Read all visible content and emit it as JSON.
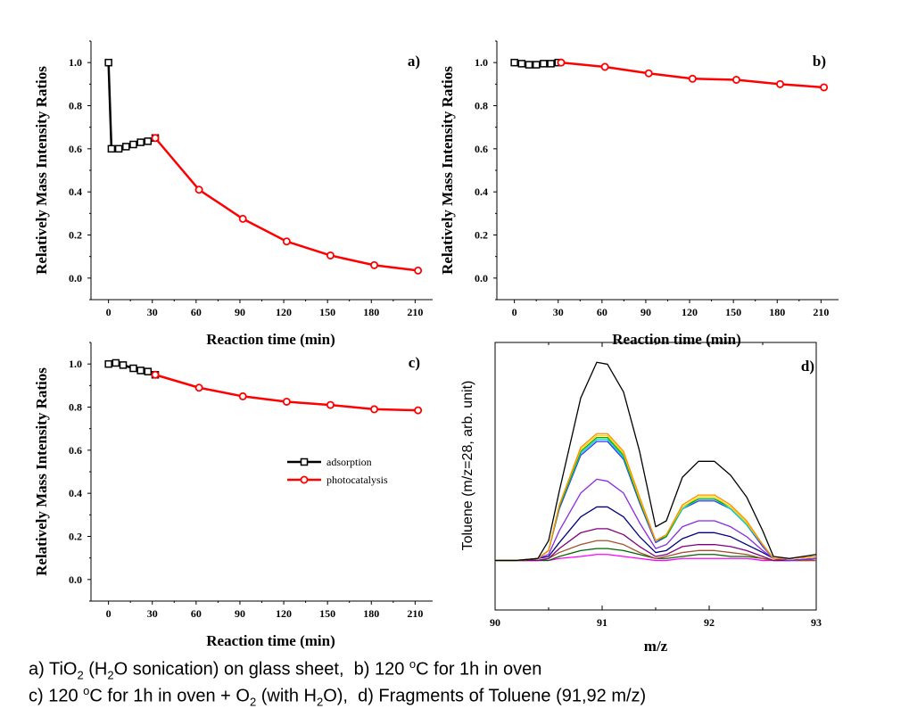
{
  "colors": {
    "adsorption": "#000000",
    "photocatalysis": "#ff0000"
  },
  "chart_data": [
    {
      "type": "line",
      "panel_label": "a)",
      "xlabel": "Reaction time (min)",
      "ylabel": "Relatively Mass Intensity Ratios",
      "xlim": [
        -12,
        222
      ],
      "ylim": [
        -0.1,
        1.1
      ],
      "xticks": [
        0,
        30,
        60,
        90,
        120,
        150,
        180,
        210
      ],
      "yticks": [
        0.0,
        0.2,
        0.4,
        0.6,
        0.8,
        1.0
      ],
      "series": [
        {
          "marker": "square",
          "x": [
            0,
            2,
            7,
            12,
            17,
            22,
            27,
            32
          ],
          "y": [
            1.0,
            0.6,
            0.6,
            0.61,
            0.62,
            0.63,
            0.635,
            0.65
          ]
        },
        {
          "marker": "circle",
          "x": [
            32,
            62,
            92,
            122,
            152,
            182,
            212
          ],
          "y": [
            0.65,
            0.41,
            0.275,
            0.17,
            0.105,
            0.06,
            0.035
          ]
        }
      ]
    },
    {
      "type": "line",
      "panel_label": "b)",
      "xlabel": "Reaction time (min)",
      "ylabel": "Relatively Mass Intensity Ratios",
      "xlim": [
        -12,
        222
      ],
      "ylim": [
        -0.1,
        1.1
      ],
      "xticks": [
        0,
        30,
        60,
        90,
        120,
        150,
        180,
        210
      ],
      "yticks": [
        0.0,
        0.2,
        0.4,
        0.6,
        0.8,
        1.0
      ],
      "series": [
        {
          "marker": "square",
          "x": [
            0,
            5,
            10,
            15,
            20,
            25,
            30
          ],
          "y": [
            1.0,
            0.995,
            0.99,
            0.99,
            0.995,
            0.995,
            1.0
          ]
        },
        {
          "marker": "circle",
          "x": [
            32,
            62,
            92,
            122,
            152,
            182,
            212
          ],
          "y": [
            1.0,
            0.98,
            0.95,
            0.925,
            0.92,
            0.9,
            0.885
          ]
        }
      ]
    },
    {
      "type": "line",
      "panel_label": "c)",
      "xlabel": "Reaction time (min)",
      "ylabel": "Relatively Mass Intensity Ratios",
      "xlim": [
        -12,
        222
      ],
      "ylim": [
        -0.1,
        1.1
      ],
      "xticks": [
        0,
        30,
        60,
        90,
        120,
        150,
        180,
        210
      ],
      "yticks": [
        0.0,
        0.2,
        0.4,
        0.6,
        0.8,
        1.0
      ],
      "legend": {
        "placement": "center-right",
        "entries": [
          "adsorption",
          "photocatalysis"
        ]
      },
      "series": [
        {
          "name": "adsorption",
          "marker": "square",
          "x": [
            0,
            5,
            10,
            17,
            22,
            27,
            32
          ],
          "y": [
            1.0,
            1.005,
            0.995,
            0.98,
            0.97,
            0.965,
            0.95
          ]
        },
        {
          "name": "photocatalysis",
          "marker": "circle",
          "x": [
            32,
            62,
            92,
            122,
            152,
            182,
            212
          ],
          "y": [
            0.95,
            0.89,
            0.85,
            0.825,
            0.81,
            0.79,
            0.785
          ]
        }
      ]
    },
    {
      "type": "line",
      "panel_label": "d)",
      "xlabel": "m/z",
      "ylabel": "Toluene (m/z=28, arb. unit)",
      "xlim": [
        90,
        93
      ],
      "ylim": [
        -0.25,
        1.1
      ],
      "xticks": [
        90,
        91,
        92,
        93
      ],
      "x": [
        90.0,
        90.2,
        90.4,
        90.5,
        90.6,
        90.8,
        90.95,
        91.05,
        91.2,
        91.35,
        91.5,
        91.6,
        91.75,
        91.9,
        92.05,
        92.2,
        92.35,
        92.5,
        92.6,
        92.75,
        93.0
      ],
      "series": [
        {
          "color": "#000000",
          "y": [
            0.0,
            0.0,
            0.01,
            0.1,
            0.35,
            0.82,
            1.0,
            0.99,
            0.85,
            0.55,
            0.17,
            0.2,
            0.42,
            0.5,
            0.5,
            0.43,
            0.32,
            0.15,
            0.02,
            0.01,
            0.03
          ]
        },
        {
          "color": "#ff8c00",
          "y": [
            0.0,
            0.0,
            0.01,
            0.05,
            0.28,
            0.57,
            0.64,
            0.64,
            0.55,
            0.32,
            0.1,
            0.13,
            0.28,
            0.33,
            0.33,
            0.28,
            0.2,
            0.08,
            0.01,
            0.01,
            0.02
          ]
        },
        {
          "color": "#ffd700",
          "y": [
            0.0,
            0.0,
            0.01,
            0.05,
            0.28,
            0.56,
            0.63,
            0.63,
            0.54,
            0.31,
            0.1,
            0.13,
            0.27,
            0.32,
            0.32,
            0.27,
            0.19,
            0.08,
            0.01,
            0.01,
            0.02
          ]
        },
        {
          "color": "#00aa00",
          "y": [
            0.0,
            0.0,
            0.01,
            0.05,
            0.27,
            0.55,
            0.62,
            0.62,
            0.53,
            0.3,
            0.1,
            0.12,
            0.27,
            0.31,
            0.31,
            0.27,
            0.19,
            0.08,
            0.01,
            0.01,
            0.02
          ]
        },
        {
          "color": "#00cccc",
          "y": [
            0.0,
            0.0,
            0.01,
            0.05,
            0.27,
            0.54,
            0.61,
            0.61,
            0.52,
            0.3,
            0.1,
            0.12,
            0.26,
            0.31,
            0.31,
            0.26,
            0.18,
            0.08,
            0.01,
            0.01,
            0.02
          ]
        },
        {
          "color": "#3333ff",
          "y": [
            0.0,
            0.0,
            0.01,
            0.05,
            0.26,
            0.53,
            0.6,
            0.6,
            0.51,
            0.29,
            0.09,
            0.12,
            0.26,
            0.3,
            0.3,
            0.26,
            0.18,
            0.07,
            0.01,
            0.01,
            0.02
          ]
        },
        {
          "color": "#8a2be2",
          "y": [
            0.0,
            0.0,
            0.01,
            0.03,
            0.15,
            0.34,
            0.41,
            0.4,
            0.34,
            0.19,
            0.06,
            0.08,
            0.17,
            0.2,
            0.2,
            0.17,
            0.12,
            0.05,
            0.01,
            0.0,
            0.01
          ]
        },
        {
          "color": "#000080",
          "y": [
            0.0,
            0.0,
            0.01,
            0.02,
            0.09,
            0.22,
            0.27,
            0.27,
            0.22,
            0.12,
            0.04,
            0.05,
            0.11,
            0.14,
            0.14,
            0.12,
            0.08,
            0.04,
            0.01,
            0.0,
            0.01
          ]
        },
        {
          "color": "#800080",
          "y": [
            0.0,
            0.0,
            0.0,
            0.01,
            0.06,
            0.14,
            0.16,
            0.16,
            0.13,
            0.07,
            0.02,
            0.03,
            0.07,
            0.08,
            0.08,
            0.07,
            0.05,
            0.02,
            0.0,
            0.0,
            0.01
          ]
        },
        {
          "color": "#a0522d",
          "y": [
            0.0,
            0.0,
            0.0,
            0.01,
            0.04,
            0.08,
            0.1,
            0.1,
            0.08,
            0.04,
            0.01,
            0.02,
            0.04,
            0.05,
            0.05,
            0.04,
            0.03,
            0.01,
            0.0,
            0.0,
            0.0
          ]
        },
        {
          "color": "#006400",
          "y": [
            0.0,
            0.0,
            0.0,
            0.0,
            0.02,
            0.05,
            0.06,
            0.06,
            0.05,
            0.03,
            0.01,
            0.01,
            0.02,
            0.03,
            0.03,
            0.02,
            0.02,
            0.01,
            0.0,
            0.0,
            0.0
          ]
        },
        {
          "color": "#ff00ff",
          "y": [
            0.0,
            0.0,
            0.0,
            0.0,
            0.01,
            0.02,
            0.03,
            0.03,
            0.02,
            0.01,
            0.0,
            0.0,
            0.01,
            0.01,
            0.01,
            0.01,
            0.01,
            0.0,
            0.0,
            0.0,
            0.0
          ]
        }
      ]
    }
  ],
  "captions": {
    "line1": [
      {
        "t": "a) TiO"
      },
      {
        "t": "2",
        "sub": true
      },
      {
        "t": " (H"
      },
      {
        "t": "2",
        "sub": true
      },
      {
        "t": "O sonication) on glass sheet,  b) 120 "
      },
      {
        "t": "o",
        "sup": true
      },
      {
        "t": "C for 1h in oven"
      }
    ],
    "line2": [
      {
        "t": "c) 120 "
      },
      {
        "t": "o",
        "sup": true
      },
      {
        "t": "C for 1h in oven + O"
      },
      {
        "t": "2",
        "sub": true
      },
      {
        "t": " (with H"
      },
      {
        "t": "2",
        "sub": true
      },
      {
        "t": "O),  d) Fragments of Toluene (91,92 m/z)"
      }
    ]
  }
}
